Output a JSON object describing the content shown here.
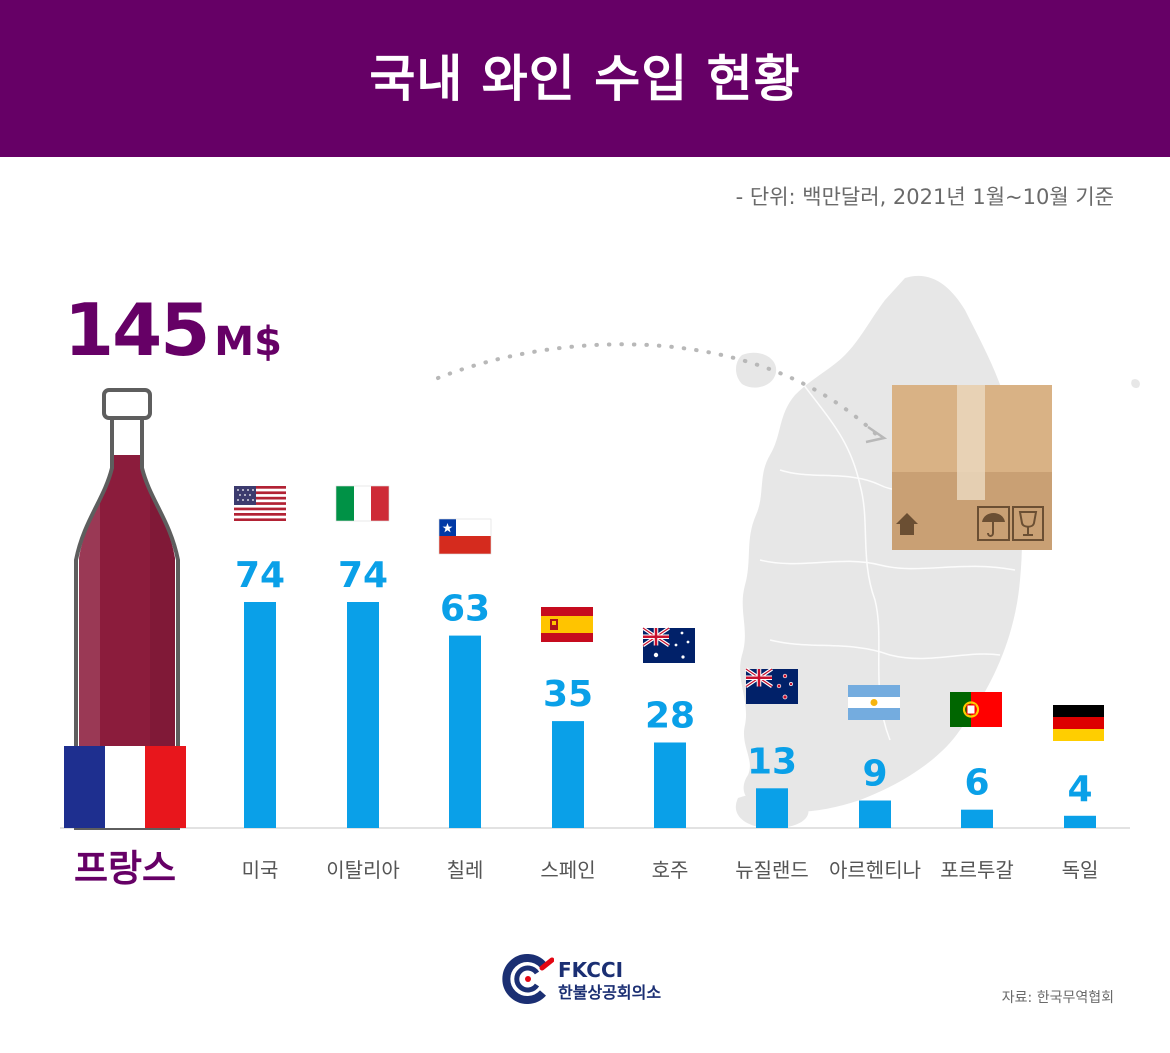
{
  "title": "국내 와인 수입 현황",
  "unit_note": "- 단위: 백만달러, 2021년 1월~10월 기준",
  "featured": {
    "value": "145",
    "unit": "M$",
    "label": "프랑스"
  },
  "chart_data": {
    "type": "bar",
    "title": "국내 와인 수입 현황",
    "xlabel": "",
    "ylabel": "",
    "unit": "백만달러",
    "categories": [
      "프랑스",
      "미국",
      "이탈리아",
      "칠레",
      "스페인",
      "호주",
      "뉴질랜드",
      "아르헨티나",
      "포르투갈",
      "독일"
    ],
    "values": [
      145,
      74,
      74,
      63,
      35,
      28,
      13,
      9,
      6,
      4
    ],
    "ylim": [
      0,
      145
    ],
    "grid": false,
    "legend": "none"
  },
  "colors": {
    "header": "#660066",
    "accent": "#660066",
    "bar": "#0aa0e8",
    "value_text": "#0aa0e8",
    "label_text": "#555555",
    "wine": "#8b1c3c",
    "map": "#e7e7e7"
  },
  "icons": [
    "wine-bottle-icon",
    "korea-map-icon",
    "cardboard-box-icon",
    "umbrella-icon",
    "wine-glass-icon",
    "up-arrow-icon"
  ],
  "logo": {
    "en": "FKCCI",
    "kr": "한불상공회의소"
  },
  "source": "자료: 한국무역협회"
}
